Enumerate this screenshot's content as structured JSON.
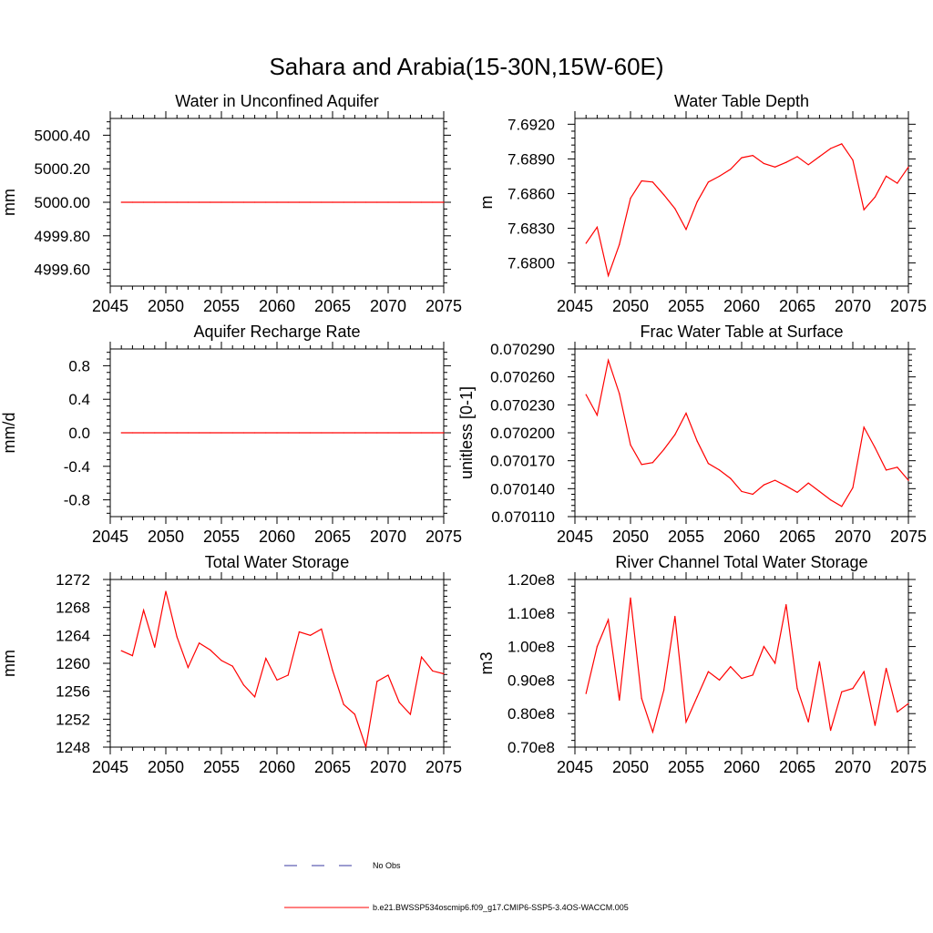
{
  "figure": {
    "title": "Sahara and Arabia(15-30N,15W-60E)",
    "legend": {
      "no_obs_label": "No Obs",
      "model_label": "b.e21.BWSSP534oscmip6.f09_g17.CMIP6-SSP5-3.4OS-WACCM.005"
    },
    "colors": {
      "model": "#ff0000",
      "obs": "#3a3aa0",
      "axis": "#000000"
    }
  },
  "chart_data": [
    {
      "type": "line",
      "title": "Water in Unconfined Aquifer",
      "ylabel": "mm",
      "xlim": [
        2045,
        2075
      ],
      "ylim": [
        4999.5,
        5000.5
      ],
      "xticks": [
        2045,
        2050,
        2055,
        2060,
        2065,
        2070,
        2075
      ],
      "xtick_labels": [
        "2045",
        "2050",
        "2055",
        "2060",
        "2065",
        "2070",
        "2075"
      ],
      "yticks": [
        4999.6,
        4999.8,
        5000.0,
        5000.2,
        5000.4
      ],
      "ytick_labels": [
        "4999.60",
        "4999.80",
        "5000.00",
        "5000.20",
        "5000.40"
      ],
      "x": [
        2046,
        2047,
        2048,
        2049,
        2050,
        2051,
        2052,
        2053,
        2054,
        2055,
        2056,
        2057,
        2058,
        2059,
        2060,
        2061,
        2062,
        2063,
        2064,
        2065,
        2066,
        2067,
        2068,
        2069,
        2070,
        2071,
        2072,
        2073,
        2074,
        2075
      ],
      "values": [
        5000,
        5000,
        5000,
        5000,
        5000,
        5000,
        5000,
        5000,
        5000,
        5000,
        5000,
        5000,
        5000,
        5000,
        5000,
        5000,
        5000,
        5000,
        5000,
        5000,
        5000,
        5000,
        5000,
        5000,
        5000,
        5000,
        5000,
        5000,
        5000,
        5000
      ]
    },
    {
      "type": "line",
      "title": "Water Table Depth",
      "ylabel": "m",
      "xlim": [
        2045,
        2075
      ],
      "ylim": [
        7.678,
        7.6925
      ],
      "xticks": [
        2045,
        2050,
        2055,
        2060,
        2065,
        2070,
        2075
      ],
      "xtick_labels": [
        "2045",
        "2050",
        "2055",
        "2060",
        "2065",
        "2070",
        "2075"
      ],
      "yticks": [
        7.68,
        7.683,
        7.686,
        7.689,
        7.692
      ],
      "ytick_labels": [
        "7.6800",
        "7.6830",
        "7.6860",
        "7.6890",
        "7.6920"
      ],
      "x": [
        2046,
        2047,
        2048,
        2049,
        2050,
        2051,
        2052,
        2053,
        2054,
        2055,
        2056,
        2057,
        2058,
        2059,
        2060,
        2061,
        2062,
        2063,
        2064,
        2065,
        2066,
        2067,
        2068,
        2069,
        2070,
        2071,
        2072,
        2073,
        2074,
        2075
      ],
      "values": [
        7.6817,
        7.6831,
        7.6789,
        7.6816,
        7.6856,
        7.6871,
        7.687,
        7.6859,
        7.6847,
        7.6829,
        7.6853,
        7.687,
        7.6875,
        7.6881,
        7.6891,
        7.6893,
        7.6886,
        7.6883,
        7.6887,
        7.6892,
        7.6885,
        7.6892,
        7.6899,
        7.6903,
        7.6889,
        7.6846,
        7.6857,
        7.6875,
        7.6869,
        7.6883
      ]
    },
    {
      "type": "line",
      "title": "Aquifer Recharge Rate",
      "ylabel": "mm/d",
      "xlim": [
        2045,
        2075
      ],
      "ylim": [
        -1.0,
        1.0
      ],
      "xticks": [
        2045,
        2050,
        2055,
        2060,
        2065,
        2070,
        2075
      ],
      "xtick_labels": [
        "2045",
        "2050",
        "2055",
        "2060",
        "2065",
        "2070",
        "2075"
      ],
      "yticks": [
        -0.8,
        -0.4,
        0.0,
        0.4,
        0.8
      ],
      "ytick_labels": [
        "-0.8",
        "-0.4",
        "0.0",
        "0.4",
        "0.8"
      ],
      "x": [
        2046,
        2047,
        2048,
        2049,
        2050,
        2051,
        2052,
        2053,
        2054,
        2055,
        2056,
        2057,
        2058,
        2059,
        2060,
        2061,
        2062,
        2063,
        2064,
        2065,
        2066,
        2067,
        2068,
        2069,
        2070,
        2071,
        2072,
        2073,
        2074,
        2075
      ],
      "values": [
        0,
        0,
        0,
        0,
        0,
        0,
        0,
        0,
        0,
        0,
        0,
        0,
        0,
        0,
        0,
        0,
        0,
        0,
        0,
        0,
        0,
        0,
        0,
        0,
        0,
        0,
        0,
        0,
        0,
        0
      ]
    },
    {
      "type": "line",
      "title": "Frac Water Table at Surface",
      "ylabel": "unitless [0-1]",
      "xlim": [
        2045,
        2075
      ],
      "ylim": [
        0.07011,
        0.07029
      ],
      "xticks": [
        2045,
        2050,
        2055,
        2060,
        2065,
        2070,
        2075
      ],
      "xtick_labels": [
        "2045",
        "2050",
        "2055",
        "2060",
        "2065",
        "2070",
        "2075"
      ],
      "yticks": [
        0.07011,
        0.07014,
        0.07017,
        0.0702,
        0.07023,
        0.07026,
        0.07029
      ],
      "ytick_labels": [
        "0.070110",
        "0.070140",
        "0.070170",
        "0.070200",
        "0.070230",
        "0.070260",
        "0.070290"
      ],
      "x": [
        2046,
        2047,
        2048,
        2049,
        2050,
        2051,
        2052,
        2053,
        2054,
        2055,
        2056,
        2057,
        2058,
        2059,
        2060,
        2061,
        2062,
        2063,
        2064,
        2065,
        2066,
        2067,
        2068,
        2069,
        2070,
        2071,
        2072,
        2073,
        2074,
        2075
      ],
      "values": [
        0.070241,
        0.070219,
        0.070278,
        0.070242,
        0.070187,
        0.070166,
        0.070168,
        0.070182,
        0.070198,
        0.070221,
        0.070191,
        0.070167,
        0.07016,
        0.070151,
        0.070137,
        0.070134,
        0.070144,
        0.070149,
        0.070143,
        0.070136,
        0.070146,
        0.070137,
        0.070128,
        0.070121,
        0.070141,
        0.070206,
        0.070184,
        0.07016,
        0.070163,
        0.070149
      ]
    },
    {
      "type": "line",
      "title": "Total Water Storage",
      "ylabel": "mm",
      "xlim": [
        2045,
        2075
      ],
      "ylim": [
        1248,
        1272
      ],
      "xticks": [
        2045,
        2050,
        2055,
        2060,
        2065,
        2070,
        2075
      ],
      "xtick_labels": [
        "2045",
        "2050",
        "2055",
        "2060",
        "2065",
        "2070",
        "2075"
      ],
      "yticks": [
        1248,
        1252,
        1256,
        1260,
        1264,
        1268,
        1272
      ],
      "ytick_labels": [
        "1248",
        "1252",
        "1256",
        "1260",
        "1264",
        "1268",
        "1272"
      ],
      "x": [
        2046,
        2047,
        2048,
        2049,
        2050,
        2051,
        2052,
        2053,
        2054,
        2055,
        2056,
        2057,
        2058,
        2059,
        2060,
        2061,
        2062,
        2063,
        2064,
        2065,
        2066,
        2067,
        2068,
        2069,
        2070,
        2071,
        2072,
        2073,
        2074,
        2075
      ],
      "values": [
        1261.8,
        1261.1,
        1267.6,
        1262.3,
        1270.3,
        1263.8,
        1259.4,
        1262.9,
        1261.9,
        1260.4,
        1259.6,
        1256.9,
        1255.2,
        1260.7,
        1257.6,
        1258.3,
        1264.5,
        1264.0,
        1264.9,
        1259.0,
        1254.1,
        1252.7,
        1248.0,
        1257.4,
        1258.3,
        1254.4,
        1252.7,
        1260.9,
        1258.9,
        1258.5
      ]
    },
    {
      "type": "line",
      "title": "River Channel Total Water Storage",
      "ylabel": "m3",
      "xlim": [
        2045,
        2075
      ],
      "ylim": [
        70000000,
        120000000
      ],
      "xticks": [
        2045,
        2050,
        2055,
        2060,
        2065,
        2070,
        2075
      ],
      "xtick_labels": [
        "2045",
        "2050",
        "2055",
        "2060",
        "2065",
        "2070",
        "2075"
      ],
      "yticks": [
        70000000,
        80000000,
        90000000,
        100000000,
        110000000,
        120000000
      ],
      "ytick_labels": [
        "0.70e8",
        "0.80e8",
        "0.90e8",
        "1.00e8",
        "1.10e8",
        "1.20e8"
      ],
      "x": [
        2046,
        2047,
        2048,
        2049,
        2050,
        2051,
        2052,
        2053,
        2054,
        2055,
        2056,
        2057,
        2058,
        2059,
        2060,
        2061,
        2062,
        2063,
        2064,
        2065,
        2066,
        2067,
        2068,
        2069,
        2070,
        2071,
        2072,
        2073,
        2074,
        2075
      ],
      "values": [
        86000000,
        100000000,
        108000000,
        84000000,
        114500000,
        84500000,
        74500000,
        87000000,
        109000000,
        77500000,
        85000000,
        92500000,
        90000000,
        94000000,
        90500000,
        91500000,
        100000000,
        95000000,
        112500000,
        87500000,
        77500000,
        95500000,
        75000000,
        86500000,
        87500000,
        92500000,
        76500000,
        93500000,
        80500000,
        83000000
      ]
    }
  ]
}
